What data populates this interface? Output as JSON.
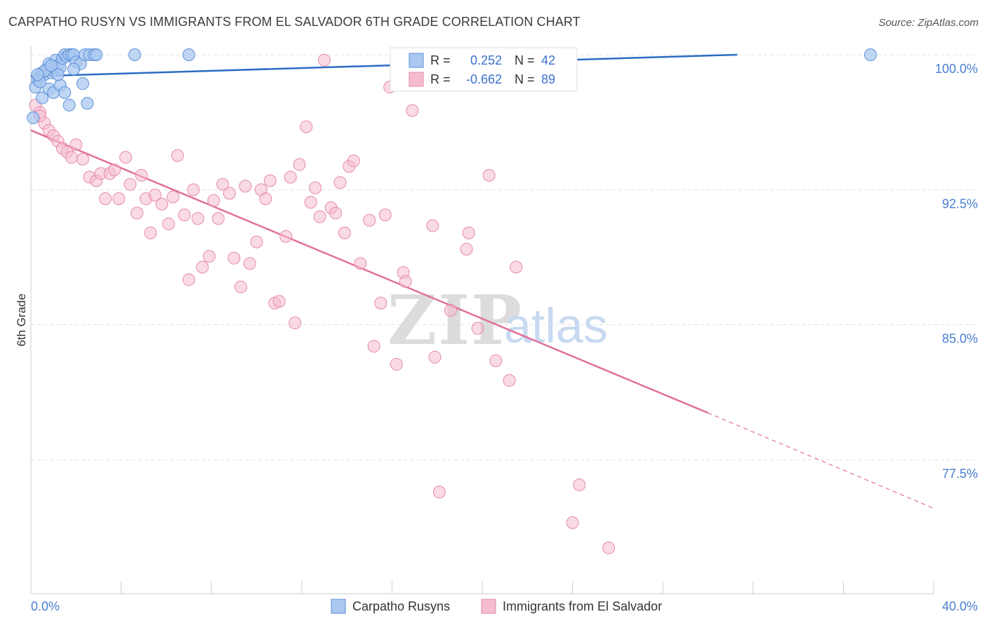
{
  "header": {
    "title": "CARPATHO RUSYN VS IMMIGRANTS FROM EL SALVADOR 6TH GRADE CORRELATION CHART",
    "source": "Source: ZipAtlas.com"
  },
  "watermark": {
    "part1": "ZIP",
    "part2": "atlas"
  },
  "colors": {
    "blue_fill": "#aac8f0",
    "blue_stroke": "#5b90d9",
    "blue_line": "#2b6cc4",
    "pink_fill": "#f5bcd0",
    "pink_stroke": "#e58aab",
    "pink_line": "#e0709a",
    "grid": "#e2e2e2",
    "tick_text": "#4a7fd1"
  },
  "legend_top": {
    "rows": [
      {
        "r_label": "R =",
        "r_value": "0.252",
        "n_label": "N =",
        "n_value": "42"
      },
      {
        "r_label": "R =",
        "r_value": "-0.662",
        "n_label": "N =",
        "n_value": "89"
      }
    ]
  },
  "legend_bottom": {
    "items": [
      "Carpatho Rusyns",
      "Immigrants from El Salvador"
    ]
  },
  "chart_data": {
    "type": "scatter",
    "title": "CARPATHO RUSYN VS IMMIGRANTS FROM EL SALVADOR 6TH GRADE CORRELATION CHART",
    "xlabel": "",
    "ylabel": "6th Grade",
    "xlim": [
      0,
      40
    ],
    "ylim": [
      70.5,
      100.7
    ],
    "x_tick_labels": [
      "0.0%",
      "40.0%"
    ],
    "y_ticks": [
      100,
      92.5,
      85,
      77.5
    ],
    "y_tick_labels": [
      "100.0%",
      "92.5%",
      "85.0%",
      "77.5%"
    ],
    "grid": true,
    "series": [
      {
        "name": "Carpatho Rusyns",
        "R": 0.252,
        "N": 42,
        "trend": {
          "x": [
            0,
            31.3
          ],
          "y": [
            98.8,
            100.0
          ]
        },
        "points": [
          [
            0.3,
            98.6
          ],
          [
            0.4,
            98.8
          ],
          [
            0.5,
            99.0
          ],
          [
            0.6,
            98.9
          ],
          [
            0.7,
            99.2
          ],
          [
            0.8,
            99.5
          ],
          [
            0.9,
            99.0
          ],
          [
            1.0,
            99.3
          ],
          [
            1.1,
            99.7
          ],
          [
            1.2,
            99.4
          ],
          [
            1.3,
            99.3
          ],
          [
            1.4,
            99.8
          ],
          [
            1.5,
            100.0
          ],
          [
            1.6,
            99.9
          ],
          [
            1.7,
            100.0
          ],
          [
            1.8,
            100.0
          ],
          [
            1.9,
            100.0
          ],
          [
            2.0,
            99.6
          ],
          [
            2.2,
            99.5
          ],
          [
            2.4,
            100.0
          ],
          [
            2.6,
            100.0
          ],
          [
            2.8,
            100.0
          ],
          [
            2.9,
            100.0
          ],
          [
            0.2,
            98.2
          ],
          [
            0.5,
            97.6
          ],
          [
            0.8,
            98.1
          ],
          [
            1.0,
            97.9
          ],
          [
            1.3,
            98.3
          ],
          [
            1.5,
            97.9
          ],
          [
            1.7,
            97.2
          ],
          [
            0.4,
            98.5
          ],
          [
            0.6,
            99.1
          ],
          [
            1.9,
            99.2
          ],
          [
            2.3,
            98.4
          ],
          [
            2.5,
            97.3
          ],
          [
            1.2,
            98.9
          ],
          [
            0.9,
            99.4
          ],
          [
            0.3,
            98.9
          ],
          [
            0.1,
            96.5
          ],
          [
            4.6,
            100.0
          ],
          [
            7.0,
            100.0
          ],
          [
            37.2,
            100.0
          ]
        ]
      },
      {
        "name": "Immigrants from El Salvador",
        "R": -0.662,
        "N": 89,
        "trend": {
          "x": [
            0,
            30.0
          ],
          "y": [
            95.8,
            80.1
          ]
        },
        "trend_dashed": {
          "x": [
            30.0,
            40.0
          ],
          "y": [
            80.1,
            74.8
          ]
        },
        "points": [
          [
            0.2,
            97.2
          ],
          [
            0.4,
            96.8
          ],
          [
            0.6,
            96.2
          ],
          [
            0.8,
            95.8
          ],
          [
            1.0,
            95.5
          ],
          [
            1.2,
            95.2
          ],
          [
            1.4,
            94.8
          ],
          [
            1.6,
            94.6
          ],
          [
            1.8,
            94.3
          ],
          [
            2.0,
            95.0
          ],
          [
            2.3,
            94.2
          ],
          [
            2.6,
            93.2
          ],
          [
            2.9,
            93.0
          ],
          [
            3.1,
            93.4
          ],
          [
            3.3,
            92.0
          ],
          [
            3.5,
            93.4
          ],
          [
            3.7,
            93.6
          ],
          [
            3.9,
            92.0
          ],
          [
            4.2,
            94.3
          ],
          [
            4.4,
            92.8
          ],
          [
            4.7,
            91.2
          ],
          [
            4.9,
            93.3
          ],
          [
            5.1,
            92.0
          ],
          [
            5.3,
            90.1
          ],
          [
            5.5,
            92.2
          ],
          [
            5.8,
            91.7
          ],
          [
            6.1,
            90.6
          ],
          [
            6.3,
            92.1
          ],
          [
            6.5,
            94.4
          ],
          [
            6.8,
            91.1
          ],
          [
            7.0,
            87.5
          ],
          [
            7.2,
            92.5
          ],
          [
            7.4,
            90.9
          ],
          [
            7.6,
            88.2
          ],
          [
            7.9,
            88.8
          ],
          [
            8.1,
            91.9
          ],
          [
            8.3,
            90.9
          ],
          [
            8.5,
            92.8
          ],
          [
            8.8,
            92.3
          ],
          [
            9.0,
            88.7
          ],
          [
            9.3,
            87.1
          ],
          [
            9.5,
            92.7
          ],
          [
            9.7,
            88.4
          ],
          [
            10.0,
            89.6
          ],
          [
            10.2,
            92.5
          ],
          [
            10.4,
            92.0
          ],
          [
            10.6,
            93.0
          ],
          [
            10.8,
            86.2
          ],
          [
            11.0,
            86.3
          ],
          [
            11.3,
            89.9
          ],
          [
            11.5,
            93.2
          ],
          [
            11.7,
            85.1
          ],
          [
            11.9,
            93.9
          ],
          [
            12.2,
            96.0
          ],
          [
            12.4,
            91.8
          ],
          [
            12.6,
            92.6
          ],
          [
            12.8,
            91.0
          ],
          [
            13.0,
            99.7
          ],
          [
            13.3,
            91.5
          ],
          [
            13.5,
            91.2
          ],
          [
            13.7,
            92.9
          ],
          [
            13.9,
            90.1
          ],
          [
            14.1,
            93.8
          ],
          [
            14.3,
            94.1
          ],
          [
            14.6,
            88.4
          ],
          [
            15.0,
            90.8
          ],
          [
            15.2,
            83.8
          ],
          [
            15.5,
            86.2
          ],
          [
            15.7,
            91.1
          ],
          [
            15.9,
            98.2
          ],
          [
            16.2,
            82.8
          ],
          [
            16.5,
            87.9
          ],
          [
            16.6,
            87.4
          ],
          [
            16.9,
            96.9
          ],
          [
            17.8,
            90.5
          ],
          [
            17.9,
            83.2
          ],
          [
            18.1,
            75.7
          ],
          [
            18.6,
            85.8
          ],
          [
            19.3,
            89.2
          ],
          [
            19.4,
            90.1
          ],
          [
            19.8,
            84.8
          ],
          [
            20.3,
            93.3
          ],
          [
            20.6,
            83.0
          ],
          [
            21.2,
            81.9
          ],
          [
            21.5,
            88.2
          ],
          [
            24.0,
            74.0
          ],
          [
            24.3,
            76.1
          ],
          [
            25.6,
            72.6
          ],
          [
            0.4,
            96.6
          ]
        ]
      }
    ]
  }
}
